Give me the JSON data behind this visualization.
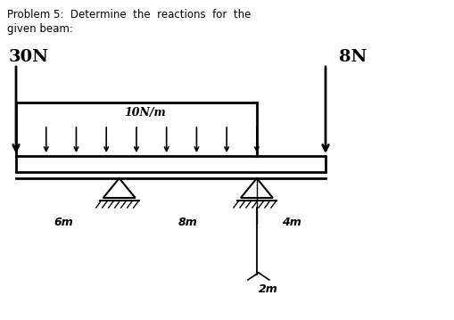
{
  "title_line1": "Problem 5:  Determine  the  reactions  for  the",
  "title_line2": "given beam:",
  "load_30N_label": "30N",
  "load_8N_label": "8N",
  "dist_load_label": "10N/m",
  "dim_left": "6m",
  "dim_middle": "8m",
  "dim_right": "4m",
  "dim_roller": "2m",
  "bg_color": "#ffffff",
  "n_dist_arrows": 8,
  "total_span": 18.0,
  "pin_at": 6.0,
  "roller_at": 14.0
}
